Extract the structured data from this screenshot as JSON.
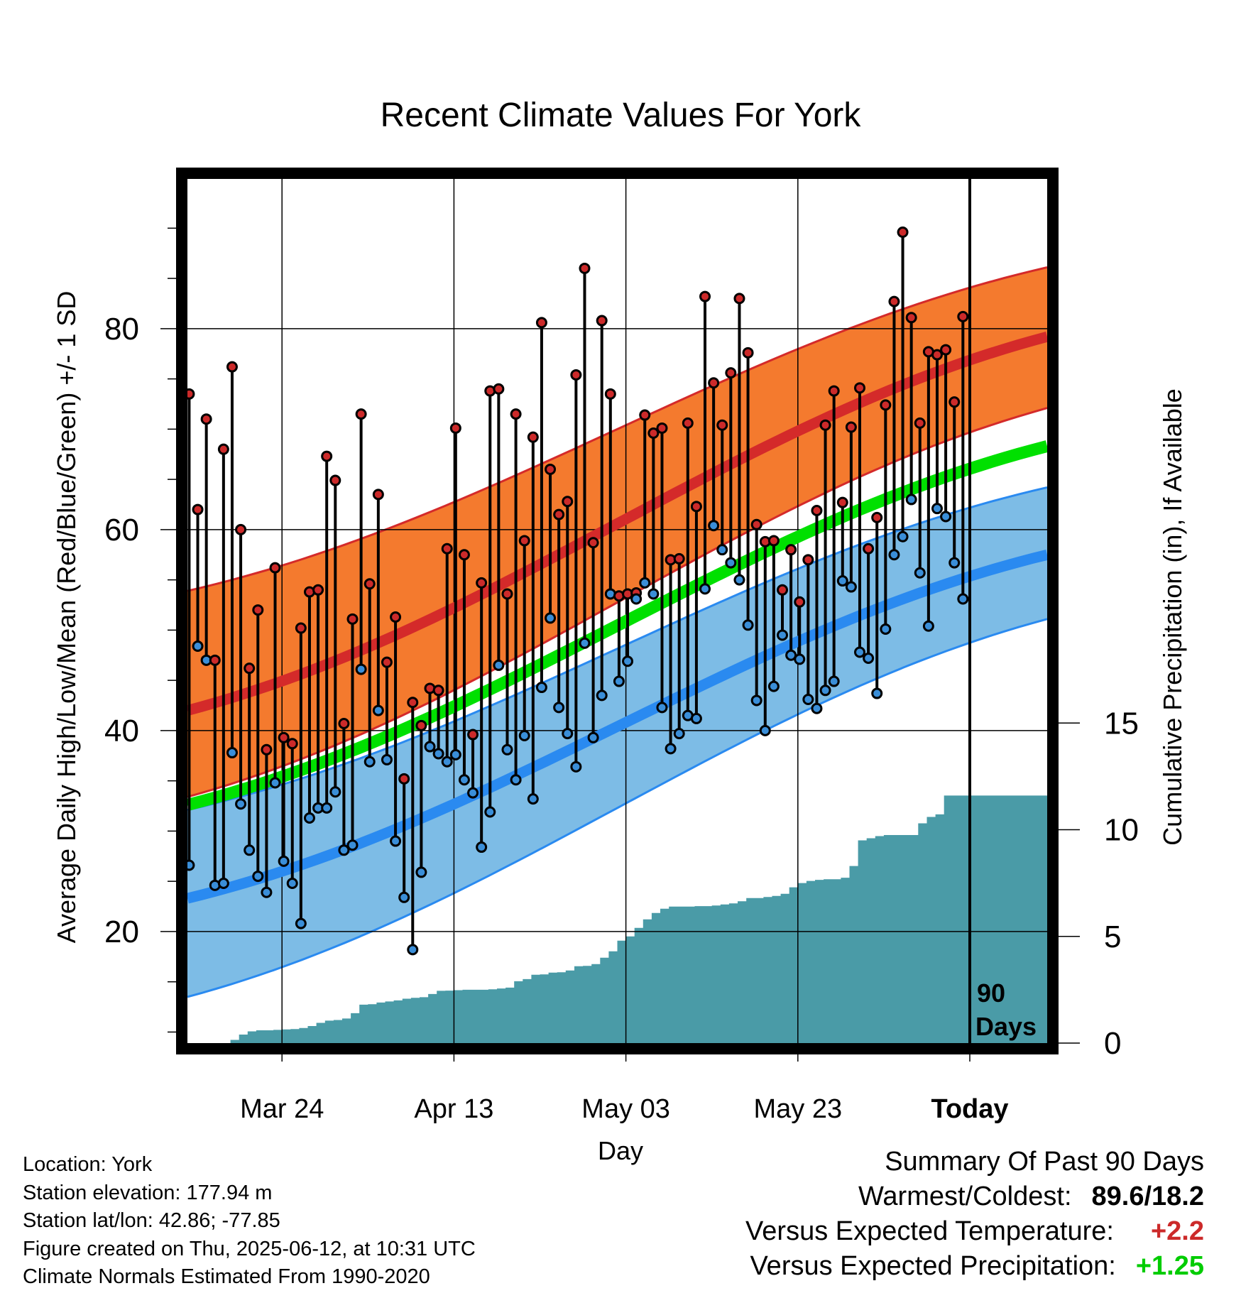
{
  "title": "Recent Climate Values For York",
  "chart_data": {
    "type": "line",
    "title": "Recent Climate Values For York",
    "xlabel": "Day",
    "ylabel": "Average Daily High/Low/Mean (Red/Blue/Green) +/- 1 SD",
    "y2label": "Cumulative Precipitation (in), If Available",
    "x_ticks": [
      "Mar 24",
      "Apr 13",
      "May 03",
      "May 23",
      "Today"
    ],
    "x_tick_day_index": [
      11,
      31,
      51,
      71,
      91
    ],
    "x_range_day_index": [
      0,
      100
    ],
    "y_ticks": [
      20,
      40,
      60,
      80
    ],
    "ylim": [
      8.9,
      94.9
    ],
    "y2_ticks": [
      0,
      5,
      10,
      15
    ],
    "y2lim": [
      0,
      40.5
    ],
    "grid": true,
    "today_marker": {
      "day_index": 91,
      "label_line1": "90",
      "label_line2": "Days"
    },
    "normal_high_mean": {
      "start": 42.0,
      "end": 79.2
    },
    "normal_high_sd_band": {
      "upper_start": 53.9,
      "upper_end": 86.1,
      "lower_start": 33.4,
      "lower_end": 72.1
    },
    "normal_low_mean": {
      "start": 23.3,
      "end": 57.5
    },
    "normal_low_sd_band": {
      "upper_start": 32.1,
      "upper_end": 64.2,
      "lower_start": 13.5,
      "lower_end": 51.1
    },
    "normal_mean": {
      "start": 32.6,
      "end": 68.3
    },
    "daily_high": [
      73.5,
      62.0,
      71.0,
      47.0,
      68.0,
      76.2,
      60.0,
      46.2,
      52.0,
      38.1,
      56.2,
      39.3,
      38.7,
      50.2,
      53.8,
      54.0,
      67.3,
      64.9,
      40.7,
      51.1,
      71.5,
      54.6,
      63.5,
      46.8,
      51.3,
      35.2,
      42.8,
      40.5,
      44.2,
      44.0,
      58.1,
      70.1,
      57.5,
      39.6,
      54.7,
      73.8,
      74.0,
      53.6,
      71.5,
      58.9,
      69.2,
      80.6,
      66.0,
      61.5,
      62.8,
      75.4,
      86.0,
      58.7,
      80.8,
      73.5,
      53.4,
      53.6,
      53.7,
      71.4,
      69.6,
      70.1,
      57.0,
      57.1,
      70.6,
      62.3,
      83.2,
      74.6,
      70.4,
      75.6,
      83.0,
      77.6,
      60.5,
      58.8,
      58.9,
      54.0,
      58.0,
      52.8,
      57.0,
      61.9,
      70.4,
      73.8,
      62.7,
      70.2,
      74.1,
      58.1,
      61.2,
      72.4,
      82.7,
      89.6,
      81.1,
      70.6,
      77.7,
      77.4,
      77.9,
      72.7,
      81.2
    ],
    "daily_low": [
      26.6,
      48.4,
      47.0,
      24.6,
      24.8,
      37.8,
      32.7,
      28.1,
      25.5,
      23.9,
      34.8,
      27.0,
      24.8,
      20.8,
      31.3,
      32.3,
      32.3,
      33.9,
      28.1,
      28.6,
      46.1,
      36.9,
      42.0,
      37.1,
      29.0,
      23.4,
      18.2,
      25.9,
      38.4,
      37.7,
      36.9,
      37.6,
      35.1,
      33.8,
      28.4,
      31.9,
      46.5,
      38.1,
      35.1,
      39.5,
      33.2,
      44.3,
      51.2,
      42.3,
      39.7,
      36.4,
      48.7,
      39.3,
      43.5,
      53.6,
      44.9,
      46.9,
      53.1,
      54.7,
      53.6,
      42.3,
      38.2,
      39.7,
      41.5,
      41.2,
      54.1,
      60.4,
      58.0,
      56.7,
      55.0,
      50.5,
      43.0,
      40.0,
      44.4,
      49.5,
      47.5,
      47.1,
      43.1,
      42.2,
      44.0,
      44.9,
      54.9,
      54.3,
      47.8,
      47.2,
      43.7,
      50.1,
      57.5,
      59.3,
      63.0,
      55.7,
      50.4,
      62.1,
      61.3,
      56.7,
      53.1
    ],
    "cumulative_precip": [
      0,
      0,
      0,
      0,
      0,
      0.15,
      0.4,
      0.55,
      0.6,
      0.6,
      0.62,
      0.64,
      0.66,
      0.71,
      0.8,
      0.95,
      1.05,
      1.08,
      1.15,
      1.4,
      1.8,
      1.82,
      1.9,
      1.95,
      2.0,
      2.08,
      2.12,
      2.15,
      2.3,
      2.45,
      2.46,
      2.48,
      2.5,
      2.5,
      2.5,
      2.52,
      2.56,
      2.6,
      2.9,
      3.0,
      3.2,
      3.22,
      3.3,
      3.32,
      3.4,
      3.6,
      3.62,
      3.7,
      4.0,
      4.3,
      4.8,
      5.0,
      5.4,
      5.8,
      6.1,
      6.3,
      6.4,
      6.4,
      6.4,
      6.42,
      6.42,
      6.45,
      6.5,
      6.55,
      6.65,
      6.8,
      6.8,
      6.85,
      6.9,
      7.0,
      7.3,
      7.5,
      7.6,
      7.65,
      7.68,
      7.68,
      7.75,
      8.3,
      9.5,
      9.6,
      9.7,
      9.75,
      9.75,
      9.75,
      9.75,
      10.3,
      10.6,
      10.72,
      11.6,
      11.6,
      11.6
    ]
  },
  "info": {
    "location": "Location: York",
    "elevation": "Station elevation: 177.94 m",
    "latlon": "Station lat/lon: 42.86; -77.85",
    "created": "Figure created on Thu, 2025-06-12, at 10:31 UTC",
    "normals": "Climate Normals Estimated From 1990-2020"
  },
  "summary": {
    "heading": "Summary Of Past 90 Days",
    "extremes_label": "Warmest/Coldest:",
    "extremes_value": "89.6/18.2",
    "temp_label": "Versus Expected Temperature:",
    "temp_value": "+2.2",
    "precip_label": "Versus Expected Precipitation:",
    "precip_value": "+1.25"
  },
  "colors": {
    "high_band": "#f47a2e",
    "high_line": "#d42a2a",
    "high_band_edge": "#d42a2a",
    "low_band": "#7dbce6",
    "low_line": "#2a8af0",
    "low_band_edge": "#2a8af0",
    "mean_line": "#00e000",
    "precip_fill": "#4a9ba7",
    "high_marker": "#cc2a2a",
    "low_marker": "#3a8ed8",
    "temp_delta": "#cc2a2a",
    "precip_delta": "#00cc00"
  }
}
